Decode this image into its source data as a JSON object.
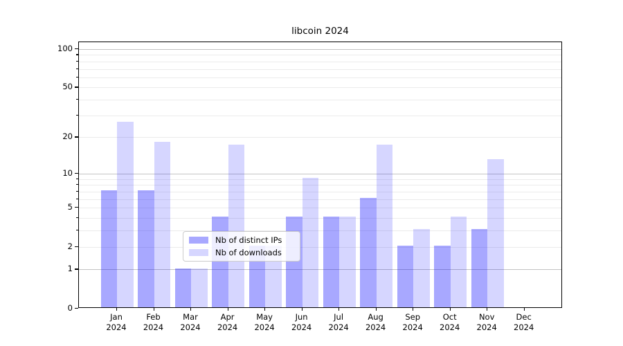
{
  "chart_data": {
    "type": "bar",
    "title": "libcoin 2024",
    "y_scale": "log10(1+x)",
    "ylim": [
      0,
      110
    ],
    "grid": "on",
    "legend_position": "lower center",
    "categories": [
      "Jan 2024",
      "Feb 2024",
      "Mar 2024",
      "Apr 2024",
      "May 2024",
      "Jun 2024",
      "Jul 2024",
      "Aug 2024",
      "Sep 2024",
      "Oct 2024",
      "Nov 2024",
      "Dec 2024"
    ],
    "series": [
      {
        "name": "Nb of distinct IPs",
        "color": "rgba(0,0,255,0.34)",
        "values": [
          7,
          7,
          1,
          4,
          2,
          4,
          4,
          6,
          2,
          2,
          3,
          0
        ]
      },
      {
        "name": "Nb of downloads",
        "color": "rgba(0,0,255,0.16)",
        "values": [
          26,
          18,
          1,
          17,
          2,
          9,
          4,
          17,
          3,
          4,
          13,
          0
        ]
      }
    ],
    "yticks_labeled": [
      0,
      1,
      2,
      5,
      10,
      20,
      50,
      100
    ],
    "yticks_minor": [
      3,
      4,
      6,
      7,
      8,
      9,
      30,
      40,
      60,
      70,
      80,
      90
    ],
    "gridlines_major": [
      1,
      10,
      100
    ],
    "gridlines_minor": [
      2,
      3,
      4,
      5,
      6,
      7,
      8,
      9,
      20,
      30,
      40,
      50,
      60,
      70,
      80,
      90
    ],
    "colors": {
      "grid_major": "#c3c3c3",
      "grid_minor": "#ebebeb",
      "spine": "#000000",
      "background": "#ffffff",
      "legend_border": "#cccccc"
    }
  }
}
